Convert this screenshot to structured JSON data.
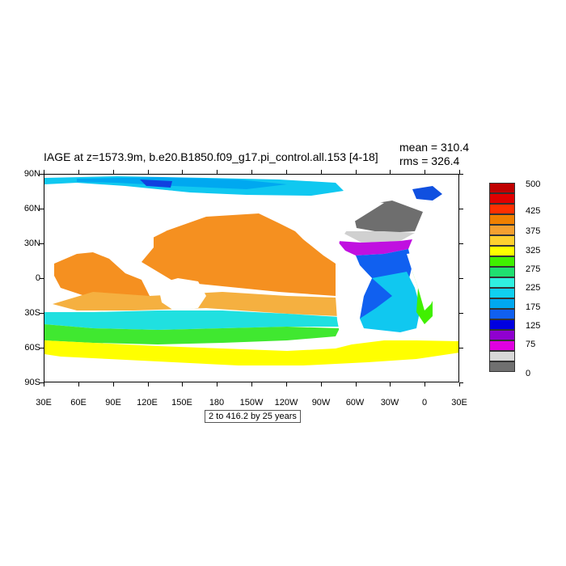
{
  "title": "IAGE at z=1573.9m, b.e20.B1850.f09_g17.pi_control.all.153 [4-18]",
  "stats": {
    "mean": "mean = 310.4",
    "rms": "rms = 326.4"
  },
  "footnote": "2 to 416.2 by 25 years",
  "axes": {
    "y_labels": [
      "90N",
      "60N",
      "30N",
      "0",
      "30S",
      "60S",
      "90S"
    ],
    "x_labels": [
      "30E",
      "60E",
      "90E",
      "120E",
      "150E",
      "180",
      "150W",
      "120W",
      "90W",
      "60W",
      "30W",
      "0",
      "30E"
    ]
  },
  "colorbar": {
    "labels": [
      "500",
      "425",
      "375",
      "325",
      "275",
      "225",
      "175",
      "125",
      "75",
      "0"
    ],
    "colors": [
      "#c00000",
      "#e00000",
      "#ff3000",
      "#f08000",
      "#f5a030",
      "#ffd030",
      "#ffff00",
      "#40f000",
      "#20e070",
      "#30f0e0",
      "#10d0f0",
      "#00a8f0",
      "#1060f0",
      "#0000e0",
      "#9000d0",
      "#e000e0",
      "#d8d8d8",
      "#707070"
    ]
  }
}
